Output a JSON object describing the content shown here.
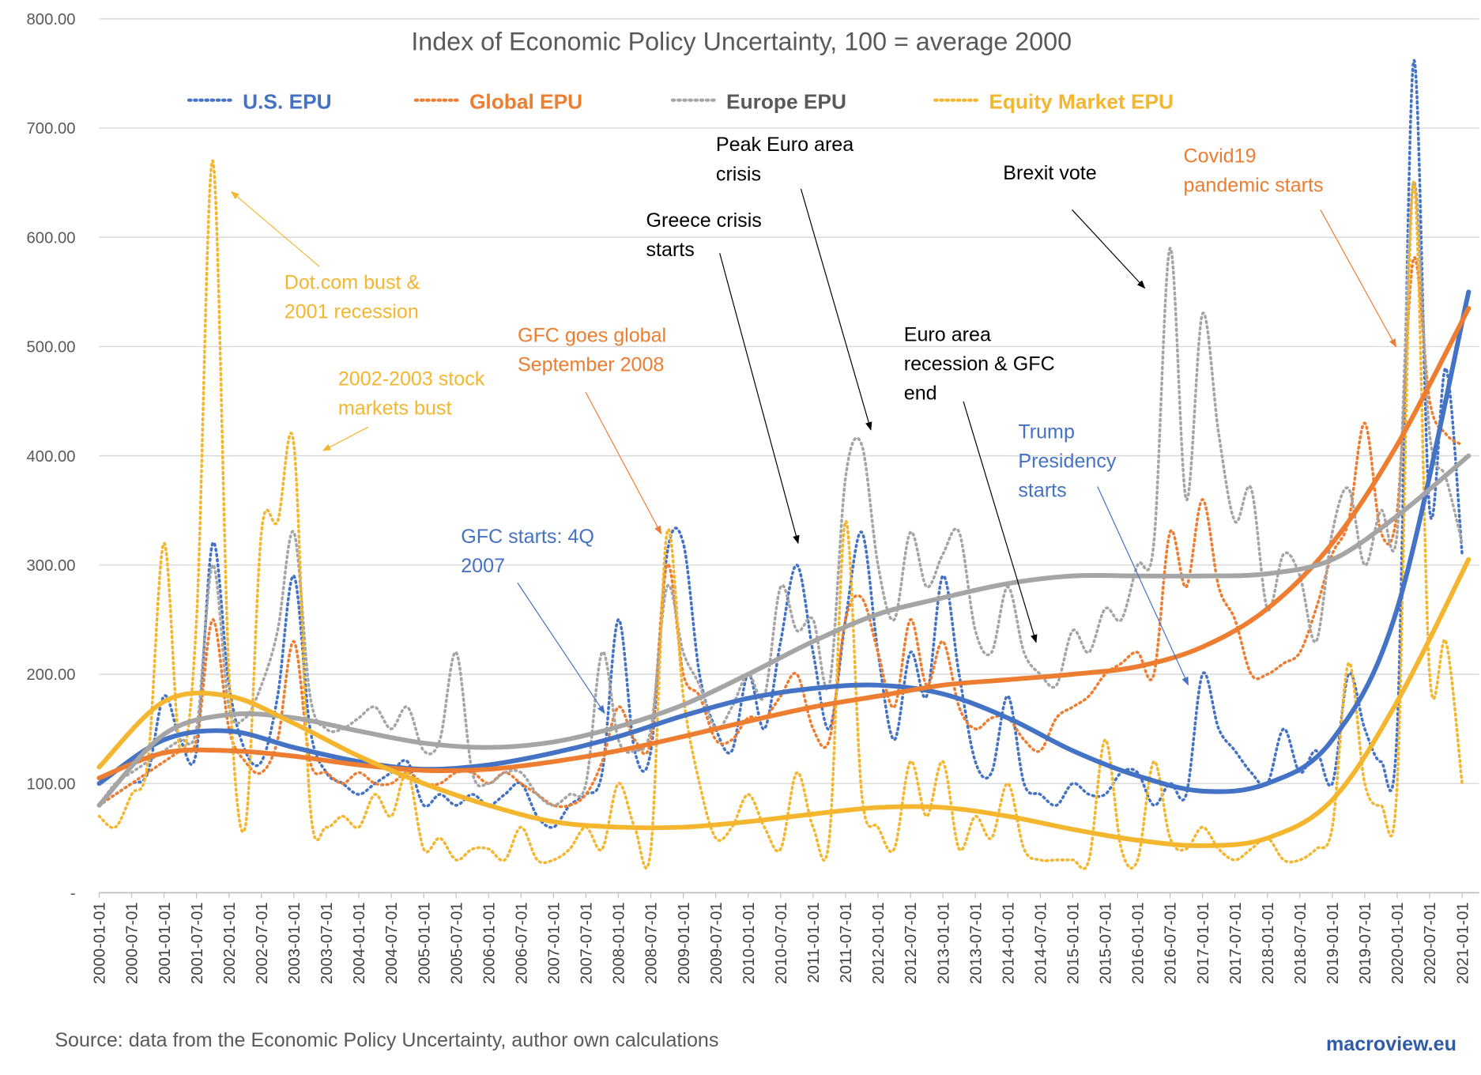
{
  "chart_data": {
    "type": "line",
    "title": "Index of Economic Policy Uncertainty, 100 = average 2000",
    "ylim": [
      0,
      800
    ],
    "yticks": [
      "-",
      "100.00",
      "200.00",
      "300.00",
      "400.00",
      "500.00",
      "600.00",
      "700.00",
      "800.00"
    ],
    "xlim": [
      "2000-01-01",
      "2021-04-01"
    ],
    "xticks": [
      "2000-01-01",
      "2000-07-01",
      "2001-01-01",
      "2001-07-01",
      "2002-01-01",
      "2002-07-01",
      "2003-01-01",
      "2003-07-01",
      "2004-01-01",
      "2004-07-01",
      "2005-01-01",
      "2005-07-01",
      "2006-01-01",
      "2006-07-01",
      "2007-01-01",
      "2007-07-01",
      "2008-01-01",
      "2008-07-01",
      "2009-01-01",
      "2009-07-01",
      "2010-01-01",
      "2010-07-01",
      "2011-01-01",
      "2011-07-01",
      "2012-01-01",
      "2012-07-01",
      "2013-01-01",
      "2013-07-01",
      "2014-01-01",
      "2014-07-01",
      "2015-01-01",
      "2015-07-01",
      "2016-01-01",
      "2016-07-01",
      "2017-01-01",
      "2017-07-01",
      "2018-01-01",
      "2018-07-01",
      "2019-01-01",
      "2019-07-01",
      "2020-01-01",
      "2020-07-01",
      "2021-01-01"
    ],
    "grid": true,
    "legend_placement": "top",
    "x_frequency": "quarterly, starting 2000-01",
    "series": [
      {
        "name": "U.S. EPU",
        "color": "#4472C4",
        "style": "dotted",
        "values": [
          80,
          90,
          100,
          110,
          180,
          140,
          130,
          320,
          190,
          130,
          120,
          180,
          290,
          150,
          110,
          100,
          90,
          100,
          110,
          120,
          80,
          90,
          80,
          90,
          80,
          90,
          100,
          70,
          60,
          80,
          90,
          110,
          250,
          130,
          130,
          310,
          320,
          200,
          150,
          130,
          200,
          150,
          230,
          300,
          220,
          150,
          250,
          330,
          220,
          140,
          220,
          180,
          290,
          200,
          120,
          110,
          180,
          100,
          90,
          80,
          100,
          90,
          90,
          110,
          110,
          80,
          100,
          90,
          200,
          150,
          130,
          110,
          100,
          150,
          110,
          130,
          100,
          200,
          150,
          120,
          150,
          760,
          350,
          480,
          310
        ]
      },
      {
        "name": "Global EPU",
        "color": "#ED7D31",
        "style": "dotted",
        "values": [
          80,
          90,
          100,
          110,
          120,
          130,
          140,
          250,
          150,
          120,
          110,
          140,
          230,
          120,
          110,
          100,
          110,
          100,
          100,
          110,
          100,
          100,
          110,
          110,
          100,
          110,
          100,
          90,
          80,
          80,
          90,
          120,
          170,
          140,
          140,
          300,
          200,
          180,
          140,
          140,
          160,
          160,
          180,
          200,
          150,
          140,
          250,
          270,
          220,
          170,
          250,
          190,
          230,
          170,
          150,
          160,
          160,
          140,
          130,
          160,
          170,
          180,
          200,
          210,
          220,
          200,
          330,
          280,
          360,
          280,
          250,
          200,
          200,
          210,
          220,
          260,
          310,
          340,
          430,
          330,
          350,
          580,
          450,
          420,
          410
        ]
      },
      {
        "name": "Europe EPU",
        "color": "#A5A5A5",
        "style": "dotted",
        "values": [
          80,
          100,
          110,
          120,
          130,
          140,
          150,
          300,
          170,
          160,
          190,
          240,
          330,
          180,
          150,
          150,
          160,
          170,
          150,
          170,
          130,
          140,
          220,
          110,
          100,
          110,
          110,
          90,
          80,
          90,
          100,
          220,
          140,
          130,
          150,
          280,
          220,
          190,
          150,
          170,
          200,
          180,
          280,
          240,
          250,
          190,
          380,
          410,
          300,
          250,
          330,
          280,
          310,
          330,
          240,
          220,
          280,
          220,
          200,
          190,
          240,
          220,
          260,
          250,
          300,
          320,
          590,
          360,
          530,
          420,
          340,
          370,
          260,
          310,
          290,
          230,
          330,
          370,
          300,
          350,
          330,
          650,
          420,
          380,
          320
        ]
      },
      {
        "name": "Equity Market EPU",
        "color": "#F4B62F",
        "style": "dotted",
        "values": [
          70,
          60,
          90,
          120,
          320,
          130,
          250,
          670,
          200,
          60,
          330,
          340,
          410,
          80,
          60,
          70,
          60,
          90,
          70,
          110,
          40,
          50,
          30,
          40,
          40,
          30,
          60,
          30,
          30,
          40,
          60,
          40,
          100,
          60,
          40,
          330,
          180,
          100,
          50,
          60,
          90,
          60,
          40,
          110,
          60,
          50,
          340,
          90,
          60,
          40,
          120,
          70,
          120,
          40,
          70,
          50,
          100,
          40,
          30,
          30,
          30,
          30,
          140,
          40,
          30,
          120,
          50,
          40,
          60,
          40,
          30,
          40,
          50,
          30,
          30,
          40,
          60,
          210,
          100,
          80,
          100,
          650,
          200,
          230,
          100
        ]
      }
    ],
    "trendlines": {
      "years": [
        2000,
        2001,
        2002,
        2003,
        2004,
        2005,
        2006,
        2007,
        2008,
        2009,
        2010,
        2011,
        2012,
        2013,
        2014,
        2015,
        2016,
        2017,
        2018,
        2019,
        2020,
        2021.1
      ],
      "U.S. EPU": [
        100,
        140,
        148,
        133,
        120,
        113,
        117,
        128,
        143,
        162,
        178,
        187,
        190,
        182,
        160,
        130,
        107,
        93,
        100,
        140,
        260,
        550
      ],
      "Global EPU": [
        105,
        128,
        130,
        125,
        117,
        112,
        113,
        120,
        130,
        143,
        157,
        170,
        180,
        190,
        195,
        200,
        207,
        225,
        260,
        320,
        410,
        535
      ],
      "Europe EPU": [
        80,
        145,
        163,
        160,
        148,
        137,
        133,
        138,
        152,
        172,
        200,
        230,
        255,
        270,
        283,
        290,
        290,
        290,
        292,
        305,
        345,
        400
      ],
      "Equity Market EPU": [
        115,
        175,
        180,
        155,
        125,
        100,
        80,
        65,
        60,
        60,
        65,
        72,
        78,
        78,
        70,
        58,
        48,
        43,
        50,
        85,
        175,
        305
      ]
    },
    "annotations": [
      {
        "lines": [
          "Dot.com bust &",
          "2001 recession"
        ],
        "color": "#F4B62F"
      },
      {
        "lines": [
          "2002-2003 stock",
          "markets bust"
        ],
        "color": "#F4B62F"
      },
      {
        "lines": [
          "GFC goes global",
          "September 2008"
        ],
        "color": "#ED7D31"
      },
      {
        "lines": [
          "GFC starts: 4Q",
          "2007"
        ],
        "color": "#4472C4"
      },
      {
        "lines": [
          "Greece crisis",
          "starts"
        ],
        "color": "#000000"
      },
      {
        "lines": [
          "Peak Euro area",
          "crisis"
        ],
        "color": "#000000"
      },
      {
        "lines": [
          "Brexit vote"
        ],
        "color": "#000000"
      },
      {
        "lines": [
          "Covid19",
          "pandemic starts"
        ],
        "color": "#ED7D31"
      },
      {
        "lines": [
          "Euro area",
          "recession & GFC",
          "end"
        ],
        "color": "#000000"
      },
      {
        "lines": [
          "Trump",
          "Presidency",
          "starts"
        ],
        "color": "#4472C4"
      }
    ]
  },
  "footer": {
    "source": "Source: data from the Economic Policy Uncertainty, author own calculations",
    "brand": "macroview.eu"
  }
}
